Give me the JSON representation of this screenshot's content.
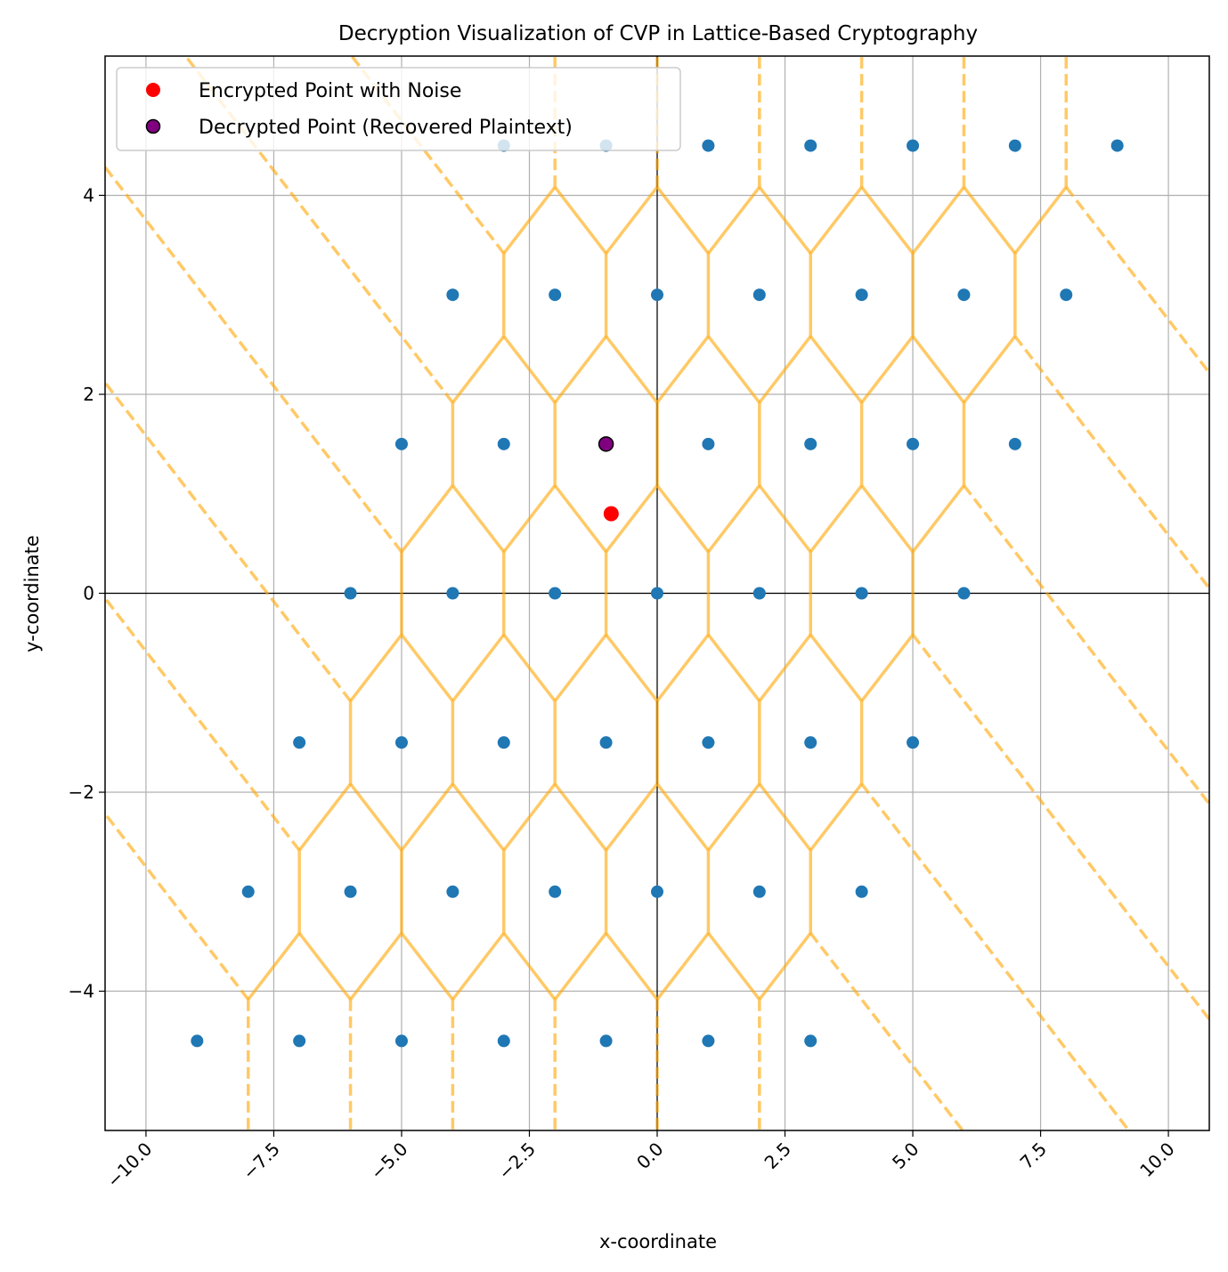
{
  "chart_data": {
    "type": "scatter",
    "title": "Decryption Visualization of CVP in Lattice-Based Cryptography",
    "xlabel": "x-coordinate",
    "ylabel": "y-coordinate",
    "xlim": [
      -10.8,
      10.8
    ],
    "ylim": [
      -5.4,
      5.4
    ],
    "grid": true,
    "xticks": [
      -10.0,
      -7.5,
      -5.0,
      -2.5,
      0.0,
      2.5,
      5.0,
      7.5,
      10.0
    ],
    "xtick_labels": [
      "−10.0",
      "−7.5",
      "−5.0",
      "−2.5",
      "0.0",
      "2.5",
      "5.0",
      "7.5",
      "10.0"
    ],
    "yticks": [
      -4,
      -2,
      0,
      2,
      4
    ],
    "ytick_labels": [
      "−4",
      "−2",
      "0",
      "2",
      "4"
    ],
    "lattice": {
      "basis": [
        [
          2,
          0
        ],
        [
          1,
          1.5
        ]
      ],
      "index_range": [
        -3,
        3
      ],
      "color": "#1f77b4"
    },
    "voronoi": {
      "color": "#ffa500",
      "alpha": 0.6
    },
    "series": [
      {
        "name": "Encrypted Point with Noise",
        "x": [
          -0.9
        ],
        "y": [
          0.8
        ],
        "color": "#ff0000"
      },
      {
        "name": "Decrypted Point (Recovered Plaintext)",
        "x": [
          -1
        ],
        "y": [
          1.5
        ],
        "color": "#800080"
      }
    ],
    "legend": {
      "placement": "top-left",
      "entries": [
        "Encrypted Point with Noise",
        "Decrypted Point (Recovered Plaintext)"
      ]
    }
  }
}
